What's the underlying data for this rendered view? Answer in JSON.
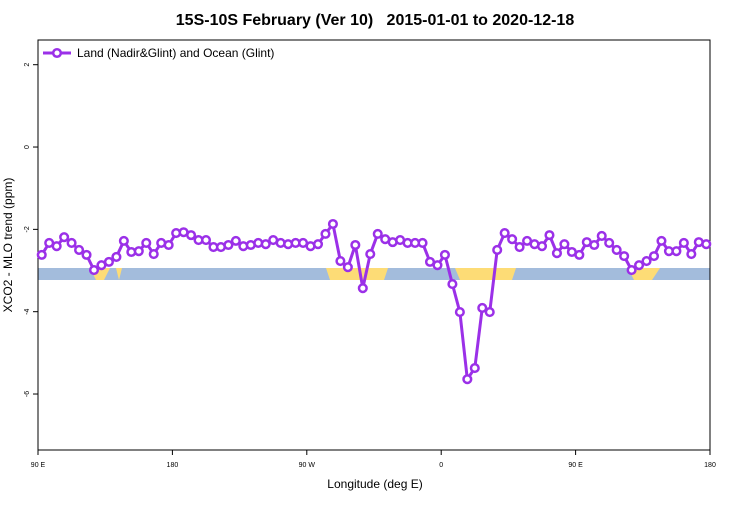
{
  "chart_data": {
    "type": "line",
    "title": "15S-10S February (Ver 10)   2015-01-01 to 2020-12-18",
    "x_label": "Longitude (deg E)",
    "y_label": "XCO2 - MLO trend (ppm)",
    "x": [
      92.5,
      97.5,
      102.5,
      107.5,
      112.5,
      117.5,
      122.5,
      127.5,
      132.5,
      137.5,
      142.5,
      147.5,
      152.5,
      157.5,
      162.5,
      167.5,
      172.5,
      177.5,
      182.5,
      187.5,
      192.5,
      197.5,
      202.5,
      207.5,
      212.5,
      217.5,
      222.5,
      227.5,
      232.5,
      237.5,
      242.5,
      247.5,
      252.5,
      257.5,
      262.5,
      267.5,
      272.5,
      277.5,
      282.5,
      287.5,
      292.5,
      297.5,
      302.5,
      307.5,
      312.5,
      317.5,
      322.5,
      327.5,
      332.5,
      337.5,
      342.5,
      347.5,
      352.5,
      357.5,
      362.5,
      367.5,
      372.5,
      377.5,
      382.5,
      387.5,
      392.5,
      397.5,
      402.5,
      407.5,
      412.5,
      417.5,
      422.5,
      427.5,
      432.5,
      437.5,
      442.5,
      447.5,
      452.5,
      457.5,
      462.5,
      467.5,
      472.5,
      477.5,
      482.5,
      487.5,
      492.5,
      497.5,
      502.5,
      507.5,
      512.5,
      517.5,
      522.5,
      527.5,
      532.5,
      537.5
    ],
    "series": [
      {
        "name": "Land (Nadir&Glint) and Ocean (Glint)",
        "color": "#9b30e8",
        "values": [
          -2.62,
          -2.33,
          -2.41,
          -2.19,
          -2.33,
          -2.5,
          -2.62,
          -2.99,
          -2.87,
          -2.79,
          -2.67,
          -2.28,
          -2.55,
          -2.53,
          -2.33,
          -2.6,
          -2.33,
          -2.38,
          -2.09,
          -2.07,
          -2.14,
          -2.26,
          -2.26,
          -2.43,
          -2.43,
          -2.38,
          -2.28,
          -2.41,
          -2.38,
          -2.33,
          -2.36,
          -2.26,
          -2.33,
          -2.36,
          -2.33,
          -2.33,
          -2.41,
          -2.36,
          -2.11,
          -1.87,
          -2.77,
          -2.92,
          -2.38,
          -3.43,
          -2.6,
          -2.11,
          -2.24,
          -2.31,
          -2.26,
          -2.33,
          -2.33,
          -2.33,
          -2.79,
          -2.87,
          -2.62,
          -3.33,
          -4.01,
          -5.64,
          -5.37,
          -3.91,
          -4.01,
          -2.5,
          -2.09,
          -2.24,
          -2.43,
          -2.28,
          -2.36,
          -2.41,
          -2.14,
          -2.58,
          -2.36,
          -2.55,
          -2.62,
          -2.31,
          -2.38,
          -2.16,
          -2.33,
          -2.5,
          -2.65,
          -2.99,
          -2.87,
          -2.77,
          -2.65,
          -2.28,
          -2.53,
          -2.53,
          -2.33,
          -2.6,
          -2.31,
          -2.36
        ]
      }
    ],
    "xlim": [
      90,
      540
    ],
    "xticks": [
      {
        "value": 90,
        "label": "90 E"
      },
      {
        "value": 180,
        "label": "180"
      },
      {
        "value": 270,
        "label": "90 W"
      },
      {
        "value": 360,
        "label": "0"
      },
      {
        "value": 450,
        "label": "90 E"
      },
      {
        "value": 540,
        "label": "180"
      }
    ],
    "ylim": [
      -7.36,
      2.6
    ],
    "yticks": [
      2,
      0,
      -2,
      -4,
      -6
    ],
    "legend": "top-left"
  }
}
